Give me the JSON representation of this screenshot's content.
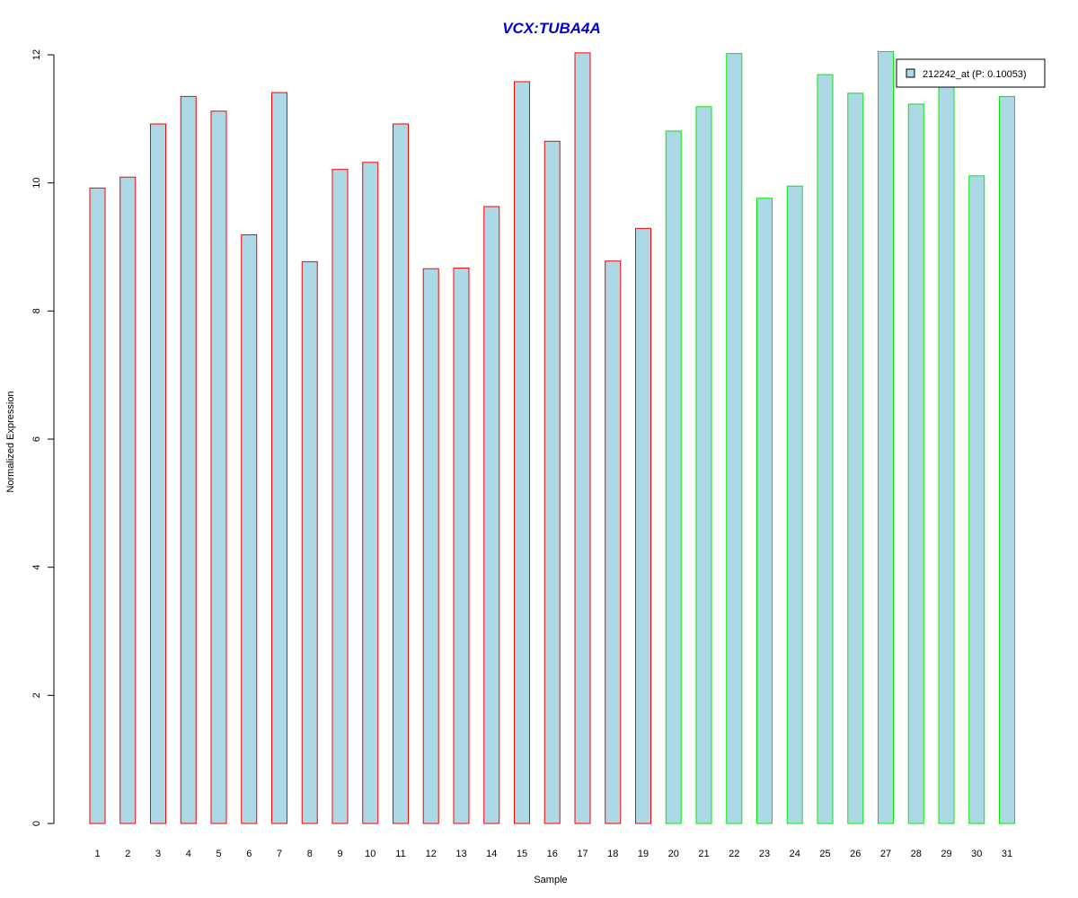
{
  "chart_data": {
    "type": "bar",
    "title": "VCX:TUBA4A",
    "xlabel": "Sample",
    "ylabel": "Normalized Expression",
    "ylim": [
      0,
      12
    ],
    "yticks": [
      0,
      2,
      4,
      6,
      8,
      10,
      12
    ],
    "categories": [
      "1",
      "2",
      "3",
      "4",
      "5",
      "6",
      "7",
      "8",
      "9",
      "10",
      "11",
      "12",
      "13",
      "14",
      "15",
      "16",
      "17",
      "18",
      "19",
      "20",
      "21",
      "22",
      "23",
      "24",
      "25",
      "26",
      "27",
      "28",
      "29",
      "30",
      "31"
    ],
    "series": [
      {
        "name": "212242_at (P: 0.10053)",
        "values": [
          9.92,
          10.09,
          10.92,
          11.35,
          11.12,
          9.19,
          11.41,
          8.77,
          10.21,
          10.32,
          10.92,
          8.66,
          8.67,
          9.63,
          11.58,
          10.65,
          12.03,
          8.78,
          9.29,
          10.81,
          11.19,
          12.02,
          9.76,
          9.95,
          11.69,
          11.4,
          12.05,
          11.23,
          11.5,
          10.11,
          11.35
        ]
      }
    ],
    "bar_group": [
      1,
      1,
      1,
      1,
      1,
      1,
      1,
      1,
      1,
      1,
      1,
      1,
      1,
      1,
      1,
      1,
      1,
      1,
      1,
      2,
      2,
      2,
      2,
      2,
      2,
      2,
      2,
      2,
      2,
      2,
      2
    ],
    "legend_position": "top-right",
    "grid": false
  },
  "colors": {
    "title": "#0000cc",
    "bar_fill": "#add8e6",
    "group1_border": "#ff0000",
    "group2_border": "#00ee00",
    "axis": "#000000"
  }
}
